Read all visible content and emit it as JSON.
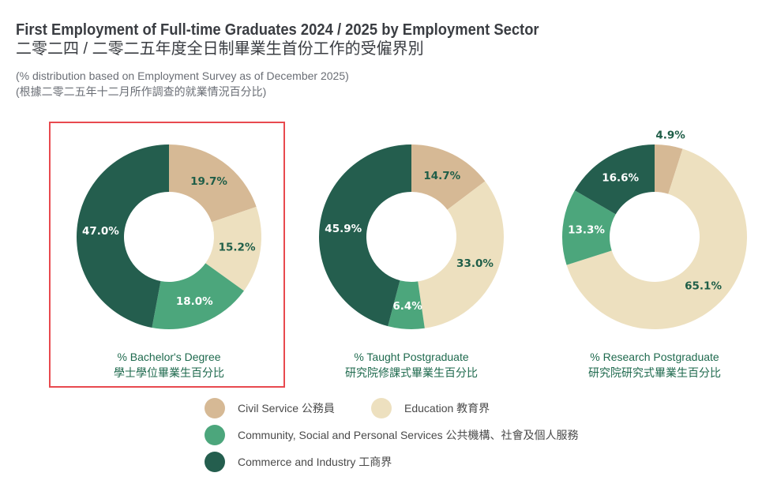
{
  "header": {
    "title_en": "First Employment of Full-time Graduates 2024 / 2025 by Employment Sector",
    "title_zh": "二零二四 / 二零二五年度全日制畢業生首份工作的受僱界別",
    "note_en": "(% distribution based on Employment Survey as of December 2025)",
    "note_zh": "(根據二零二五年十二月所作調查的就業情況百分比)"
  },
  "chart_data": [
    {
      "type": "pie",
      "variant": "donut",
      "title": "% Bachelor's Degree",
      "title_zh": "學士學位畢業生百分比",
      "highlighted": true,
      "categories": [
        "Civil Service",
        "Education",
        "Community, Social and Personal Services",
        "Commerce and Industry"
      ],
      "values": [
        19.7,
        15.2,
        18.0,
        47.0
      ],
      "labels": [
        "19.7%",
        "15.2%",
        "18.0%",
        "47.0%"
      ]
    },
    {
      "type": "pie",
      "variant": "donut",
      "title": "% Taught Postgraduate",
      "title_zh": "研究院修課式畢業生百分比",
      "categories": [
        "Civil Service",
        "Education",
        "Community, Social and Personal Services",
        "Commerce and Industry"
      ],
      "values": [
        14.7,
        33.0,
        6.4,
        45.9
      ],
      "labels": [
        "14.7%",
        "33.0%",
        "6.4%",
        "45.9%"
      ]
    },
    {
      "type": "pie",
      "variant": "donut",
      "title": "% Research Postgraduate",
      "title_zh": "研究院研究式畢業生百分比",
      "categories": [
        "Civil Service",
        "Education",
        "Community, Social and Personal Services",
        "Commerce and Industry"
      ],
      "values": [
        4.9,
        65.1,
        13.3,
        16.6
      ],
      "labels": [
        "4.9%",
        "65.1%",
        "13.3%",
        "16.6%"
      ]
    }
  ],
  "legend": [
    {
      "label": "Civil Service 公務員",
      "color": "#d6b995"
    },
    {
      "label": "Education 教育界",
      "color": "#ede0bf"
    },
    {
      "label": "Community, Social and Personal Services 公共機構、社會及個人服務",
      "color": "#4ca67c"
    },
    {
      "label": "Commerce and Industry 工商界",
      "color": "#245e4e"
    }
  ],
  "label_colors": {
    "on_light": "#1f5e48",
    "on_dark": "#ffffff"
  }
}
